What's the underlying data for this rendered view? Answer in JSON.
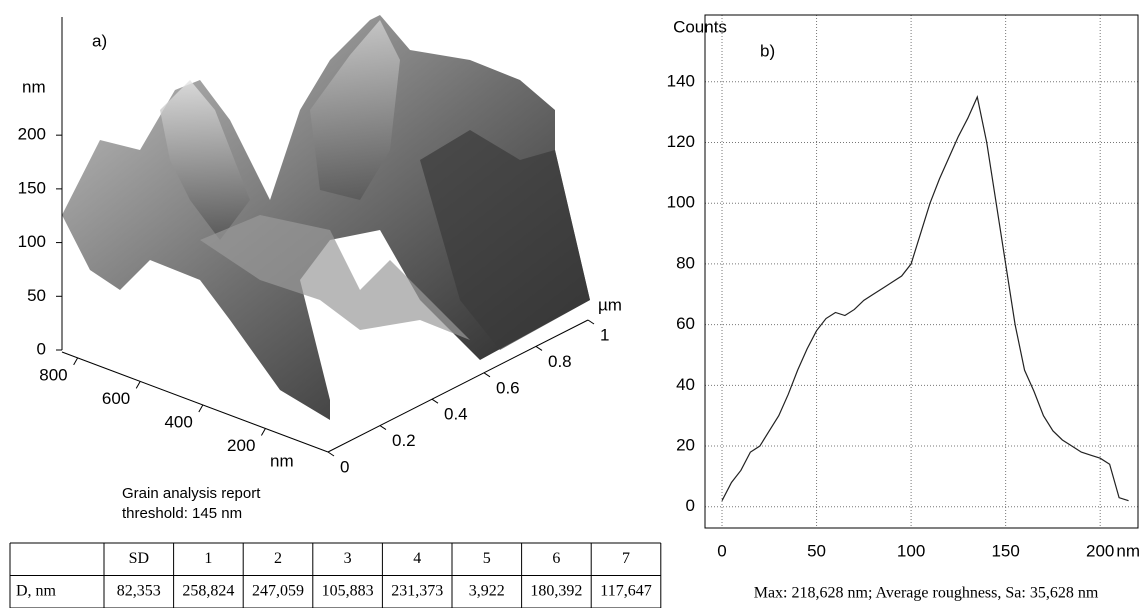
{
  "chart_data": [
    {
      "type": "surface3d",
      "label": "a)",
      "zlabel": "nm",
      "zlim": [
        0,
        310
      ],
      "zticks": [
        0,
        50,
        100,
        150,
        200
      ],
      "xlabel": "nm",
      "xlim": [
        0,
        850
      ],
      "xticks": [
        800,
        600,
        400,
        200
      ],
      "ylabel": "µm",
      "ylim": [
        0,
        1
      ],
      "yticks": [
        0,
        0.2,
        0.4,
        0.6,
        0.8,
        1
      ]
    },
    {
      "type": "line",
      "label": "b)",
      "ylabel": "Counts",
      "xlabel": "nm",
      "color": "#222222",
      "grid": true,
      "x": [
        0,
        5,
        10,
        15,
        20,
        25,
        30,
        35,
        40,
        45,
        50,
        55,
        60,
        65,
        70,
        75,
        80,
        85,
        90,
        95,
        100,
        105,
        110,
        115,
        120,
        125,
        130,
        135,
        140,
        145,
        150,
        155,
        160,
        165,
        170,
        175,
        180,
        185,
        190,
        195,
        200,
        205,
        210,
        215
      ],
      "values": [
        2,
        8,
        12,
        18,
        20,
        25,
        30,
        37,
        45,
        52,
        58,
        62,
        64,
        63,
        65,
        68,
        70,
        72,
        74,
        76,
        80,
        90,
        100,
        108,
        115,
        122,
        128,
        135,
        120,
        100,
        80,
        60,
        45,
        38,
        30,
        25,
        22,
        20,
        18,
        17,
        16,
        14,
        3,
        2
      ],
      "xlim": [
        -9,
        220
      ],
      "xticks": [
        0,
        50,
        100,
        150,
        200
      ],
      "ylim": [
        -7,
        162
      ],
      "yticks": [
        0,
        20,
        40,
        60,
        80,
        100,
        120,
        140
      ]
    }
  ],
  "report": {
    "title": "Grain analysis report",
    "threshold": "threshold: 145 nm"
  },
  "table": {
    "columns": [
      "SD",
      "1",
      "2",
      "3",
      "4",
      "5",
      "6",
      "7"
    ],
    "row": {
      "label": "D, nm",
      "values": [
        "82,353",
        "258,824",
        "247,059",
        "105,883",
        "231,373",
        "3,922",
        "180,392",
        "117,647"
      ]
    }
  },
  "caption": "Max: 218,628 nm;   Average roughness, Sa: 35,628 nm"
}
